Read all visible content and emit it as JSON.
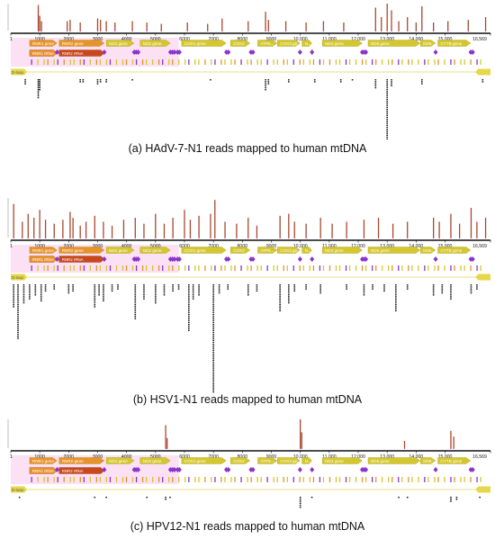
{
  "axis": {
    "ticks": [
      "1",
      "1000",
      "2000",
      "3000",
      "4000",
      "5000",
      "6000",
      "7000",
      "8000",
      "9000",
      "10,000",
      "11,000",
      "12,000",
      "13,000",
      "14,000",
      "15,000",
      "16,569"
    ],
    "positions": [
      1,
      1000,
      2000,
      3000,
      4000,
      5000,
      6000,
      7000,
      8000,
      9000,
      10000,
      11000,
      12000,
      13000,
      14000,
      15000,
      16569
    ],
    "length": 16569
  },
  "colors": {
    "gene": "#d4c72e",
    "rrna": "#e8922a",
    "rrna_dark": "#c8481c",
    "trna": "#8a35c9",
    "coverage": "#a9472e",
    "dloop": "#e6d84a",
    "highlight": "#f7c9ea"
  },
  "genes": [
    {
      "label": "RNR1 gene",
      "start": 650,
      "end": 1600,
      "type": "rrna"
    },
    {
      "label": "RNR2 gene",
      "start": 1670,
      "end": 3230,
      "type": "rrna"
    },
    {
      "label": "ND1 gene",
      "start": 3300,
      "end": 4260,
      "type": "gene"
    },
    {
      "label": "ND2 gene",
      "start": 4470,
      "end": 5510,
      "type": "gene"
    },
    {
      "label": "COX1 gene",
      "start": 5900,
      "end": 7440,
      "type": "gene"
    },
    {
      "label": "COX2",
      "start": 7590,
      "end": 8260,
      "type": "gene"
    },
    {
      "label": "ATP6...",
      "start": 8530,
      "end": 9200,
      "type": "gene"
    },
    {
      "label": "COX3 ge...",
      "start": 9210,
      "end": 9990,
      "type": "gene"
    },
    {
      "label": "N...",
      "start": 10060,
      "end": 10400,
      "type": "gene"
    },
    {
      "label": "ND4 gene",
      "start": 10760,
      "end": 12140,
      "type": "gene"
    },
    {
      "label": "ND5 gene",
      "start": 12340,
      "end": 14140,
      "type": "gene"
    },
    {
      "label": "ND6...",
      "start": 14150,
      "end": 14670,
      "type": "gene"
    },
    {
      "label": "CYTB gene",
      "start": 14750,
      "end": 15880,
      "type": "gene"
    }
  ],
  "rrna_labels": {
    "rnr1": "RNR1 rRNA",
    "rnr2": "RNR2 rRNA"
  },
  "dloop_label": "D-loop",
  "trna_positions": [
    1602,
    3230,
    4263,
    4329,
    4402,
    5512,
    5587,
    5657,
    5761,
    5826,
    7446,
    7518,
    8295,
    8366,
    9991,
    10405,
    12138,
    12207,
    12266,
    14674,
    15888,
    15956
  ],
  "panels": [
    {
      "caption": "(a) HAdV-7-N1 reads mapped to human mtDNA",
      "coverage": [
        {
          "pos": 950,
          "h": 0.95
        },
        {
          "pos": 1000,
          "h": 0.55
        },
        {
          "pos": 1060,
          "h": 0.35
        },
        {
          "pos": 1950,
          "h": 0.35
        },
        {
          "pos": 2050,
          "h": 0.4
        },
        {
          "pos": 2400,
          "h": 0.3
        },
        {
          "pos": 3000,
          "h": 0.45
        },
        {
          "pos": 3100,
          "h": 0.4
        },
        {
          "pos": 3300,
          "h": 0.35
        },
        {
          "pos": 3600,
          "h": 0.3
        },
        {
          "pos": 4200,
          "h": 0.35
        },
        {
          "pos": 4700,
          "h": 0.3
        },
        {
          "pos": 5200,
          "h": 0.25
        },
        {
          "pos": 6100,
          "h": 0.3
        },
        {
          "pos": 6800,
          "h": 0.25
        },
        {
          "pos": 7300,
          "h": 0.45
        },
        {
          "pos": 8200,
          "h": 0.35
        },
        {
          "pos": 8800,
          "h": 0.7
        },
        {
          "pos": 8900,
          "h": 0.4
        },
        {
          "pos": 9500,
          "h": 0.35
        },
        {
          "pos": 10200,
          "h": 0.3
        },
        {
          "pos": 10800,
          "h": 0.35
        },
        {
          "pos": 11500,
          "h": 0.3
        },
        {
          "pos": 12600,
          "h": 0.85
        },
        {
          "pos": 12800,
          "h": 0.5
        },
        {
          "pos": 13000,
          "h": 1.0
        },
        {
          "pos": 13150,
          "h": 0.75
        },
        {
          "pos": 13400,
          "h": 0.35
        },
        {
          "pos": 13700,
          "h": 0.5
        },
        {
          "pos": 14000,
          "h": 0.3
        },
        {
          "pos": 14200,
          "h": 0.9
        },
        {
          "pos": 14600,
          "h": 0.3
        },
        {
          "pos": 15100,
          "h": 0.35
        },
        {
          "pos": 15800,
          "h": 0.4
        },
        {
          "pos": 16400,
          "h": 0.5
        }
      ],
      "reads": [
        {
          "pos": 500,
          "n": 3
        },
        {
          "pos": 950,
          "n": 10
        },
        {
          "pos": 1000,
          "n": 6
        },
        {
          "pos": 2400,
          "n": 2
        },
        {
          "pos": 2500,
          "n": 2
        },
        {
          "pos": 3000,
          "n": 3
        },
        {
          "pos": 3100,
          "n": 2
        },
        {
          "pos": 3300,
          "n": 2
        },
        {
          "pos": 4200,
          "n": 1
        },
        {
          "pos": 6900,
          "n": 1
        },
        {
          "pos": 8800,
          "n": 6
        },
        {
          "pos": 8900,
          "n": 3
        },
        {
          "pos": 9600,
          "n": 2
        },
        {
          "pos": 10500,
          "n": 2
        },
        {
          "pos": 11400,
          "n": 2
        },
        {
          "pos": 11800,
          "n": 1
        },
        {
          "pos": 12600,
          "n": 5
        },
        {
          "pos": 13000,
          "n": 40
        },
        {
          "pos": 13150,
          "n": 4
        },
        {
          "pos": 14200,
          "n": 3
        },
        {
          "pos": 16300,
          "n": 2
        }
      ]
    },
    {
      "caption": "(b) HSV1-N1 reads mapped to human mtDNA",
      "coverage": [
        {
          "pos": 100,
          "h": 0.85
        },
        {
          "pos": 400,
          "h": 0.4
        },
        {
          "pos": 600,
          "h": 0.6
        },
        {
          "pos": 800,
          "h": 0.5
        },
        {
          "pos": 1000,
          "h": 0.7
        },
        {
          "pos": 1200,
          "h": 0.45
        },
        {
          "pos": 1500,
          "h": 0.35
        },
        {
          "pos": 1800,
          "h": 0.45
        },
        {
          "pos": 2050,
          "h": 0.65
        },
        {
          "pos": 2150,
          "h": 0.5
        },
        {
          "pos": 2400,
          "h": 0.3
        },
        {
          "pos": 2600,
          "h": 0.4
        },
        {
          "pos": 2900,
          "h": 0.55
        },
        {
          "pos": 3200,
          "h": 0.4
        },
        {
          "pos": 3500,
          "h": 0.3
        },
        {
          "pos": 3900,
          "h": 0.45
        },
        {
          "pos": 4300,
          "h": 0.5
        },
        {
          "pos": 4600,
          "h": 0.35
        },
        {
          "pos": 5000,
          "h": 0.6
        },
        {
          "pos": 5300,
          "h": 0.35
        },
        {
          "pos": 5600,
          "h": 0.5
        },
        {
          "pos": 6000,
          "h": 0.7
        },
        {
          "pos": 6200,
          "h": 0.45
        },
        {
          "pos": 6500,
          "h": 0.55
        },
        {
          "pos": 6900,
          "h": 0.6
        },
        {
          "pos": 7050,
          "h": 0.95
        },
        {
          "pos": 7400,
          "h": 0.4
        },
        {
          "pos": 7800,
          "h": 0.35
        },
        {
          "pos": 8200,
          "h": 0.5
        },
        {
          "pos": 8500,
          "h": 0.3
        },
        {
          "pos": 9300,
          "h": 0.55
        },
        {
          "pos": 9600,
          "h": 0.6
        },
        {
          "pos": 9800,
          "h": 0.4
        },
        {
          "pos": 10200,
          "h": 0.35
        },
        {
          "pos": 10700,
          "h": 0.5
        },
        {
          "pos": 11100,
          "h": 0.35
        },
        {
          "pos": 11600,
          "h": 0.4
        },
        {
          "pos": 12200,
          "h": 0.45
        },
        {
          "pos": 12700,
          "h": 0.5
        },
        {
          "pos": 13200,
          "h": 0.35
        },
        {
          "pos": 13700,
          "h": 0.4
        },
        {
          "pos": 14600,
          "h": 0.5
        },
        {
          "pos": 14800,
          "h": 0.4
        },
        {
          "pos": 15200,
          "h": 0.6
        },
        {
          "pos": 15500,
          "h": 0.35
        },
        {
          "pos": 15900,
          "h": 0.75
        },
        {
          "pos": 16100,
          "h": 0.4
        },
        {
          "pos": 16400,
          "h": 0.5
        }
      ],
      "reads": [
        {
          "pos": 100,
          "n": 12
        },
        {
          "pos": 250,
          "n": 28
        },
        {
          "pos": 450,
          "n": 10
        },
        {
          "pos": 650,
          "n": 8
        },
        {
          "pos": 850,
          "n": 6
        },
        {
          "pos": 1050,
          "n": 9
        },
        {
          "pos": 1200,
          "n": 4
        },
        {
          "pos": 1500,
          "n": 3
        },
        {
          "pos": 2000,
          "n": 5
        },
        {
          "pos": 2150,
          "n": 4
        },
        {
          "pos": 2900,
          "n": 12
        },
        {
          "pos": 3050,
          "n": 6
        },
        {
          "pos": 3200,
          "n": 9
        },
        {
          "pos": 3500,
          "n": 4
        },
        {
          "pos": 3700,
          "n": 3
        },
        {
          "pos": 4300,
          "n": 18
        },
        {
          "pos": 4600,
          "n": 8
        },
        {
          "pos": 5000,
          "n": 10
        },
        {
          "pos": 5300,
          "n": 6
        },
        {
          "pos": 5600,
          "n": 4
        },
        {
          "pos": 5800,
          "n": 3
        },
        {
          "pos": 6150,
          "n": 24
        },
        {
          "pos": 6300,
          "n": 8
        },
        {
          "pos": 6500,
          "n": 6
        },
        {
          "pos": 7000,
          "n": 55
        },
        {
          "pos": 7200,
          "n": 5
        },
        {
          "pos": 7500,
          "n": 3
        },
        {
          "pos": 8200,
          "n": 6
        },
        {
          "pos": 8500,
          "n": 4
        },
        {
          "pos": 9300,
          "n": 14
        },
        {
          "pos": 9600,
          "n": 10
        },
        {
          "pos": 9800,
          "n": 4
        },
        {
          "pos": 10200,
          "n": 3
        },
        {
          "pos": 10700,
          "n": 5
        },
        {
          "pos": 11600,
          "n": 3
        },
        {
          "pos": 12200,
          "n": 6
        },
        {
          "pos": 12500,
          "n": 3
        },
        {
          "pos": 12900,
          "n": 4
        },
        {
          "pos": 13300,
          "n": 14
        },
        {
          "pos": 13700,
          "n": 3
        },
        {
          "pos": 14600,
          "n": 6
        },
        {
          "pos": 14900,
          "n": 5
        },
        {
          "pos": 15200,
          "n": 8
        },
        {
          "pos": 15900,
          "n": 5
        },
        {
          "pos": 16100,
          "n": 3
        }
      ]
    },
    {
      "caption": "(c) HPV12-N1 reads mapped to human mtDNA",
      "coverage": [
        {
          "pos": 5350,
          "h": 0.8
        },
        {
          "pos": 5400,
          "h": 0.35
        },
        {
          "pos": 10000,
          "h": 1.0
        },
        {
          "pos": 10050,
          "h": 0.55
        },
        {
          "pos": 13600,
          "h": 0.25
        },
        {
          "pos": 15200,
          "h": 0.6
        },
        {
          "pos": 15300,
          "h": 0.4
        }
      ],
      "reads": [
        {
          "pos": 300,
          "n": 1
        },
        {
          "pos": 2900,
          "n": 1
        },
        {
          "pos": 3300,
          "n": 1
        },
        {
          "pos": 4700,
          "n": 1
        },
        {
          "pos": 5350,
          "n": 2
        },
        {
          "pos": 5500,
          "n": 1
        },
        {
          "pos": 10000,
          "n": 6
        },
        {
          "pos": 10400,
          "n": 1
        },
        {
          "pos": 13400,
          "n": 1
        },
        {
          "pos": 13700,
          "n": 1
        },
        {
          "pos": 15200,
          "n": 3
        },
        {
          "pos": 15400,
          "n": 2
        },
        {
          "pos": 16200,
          "n": 1
        }
      ]
    }
  ]
}
